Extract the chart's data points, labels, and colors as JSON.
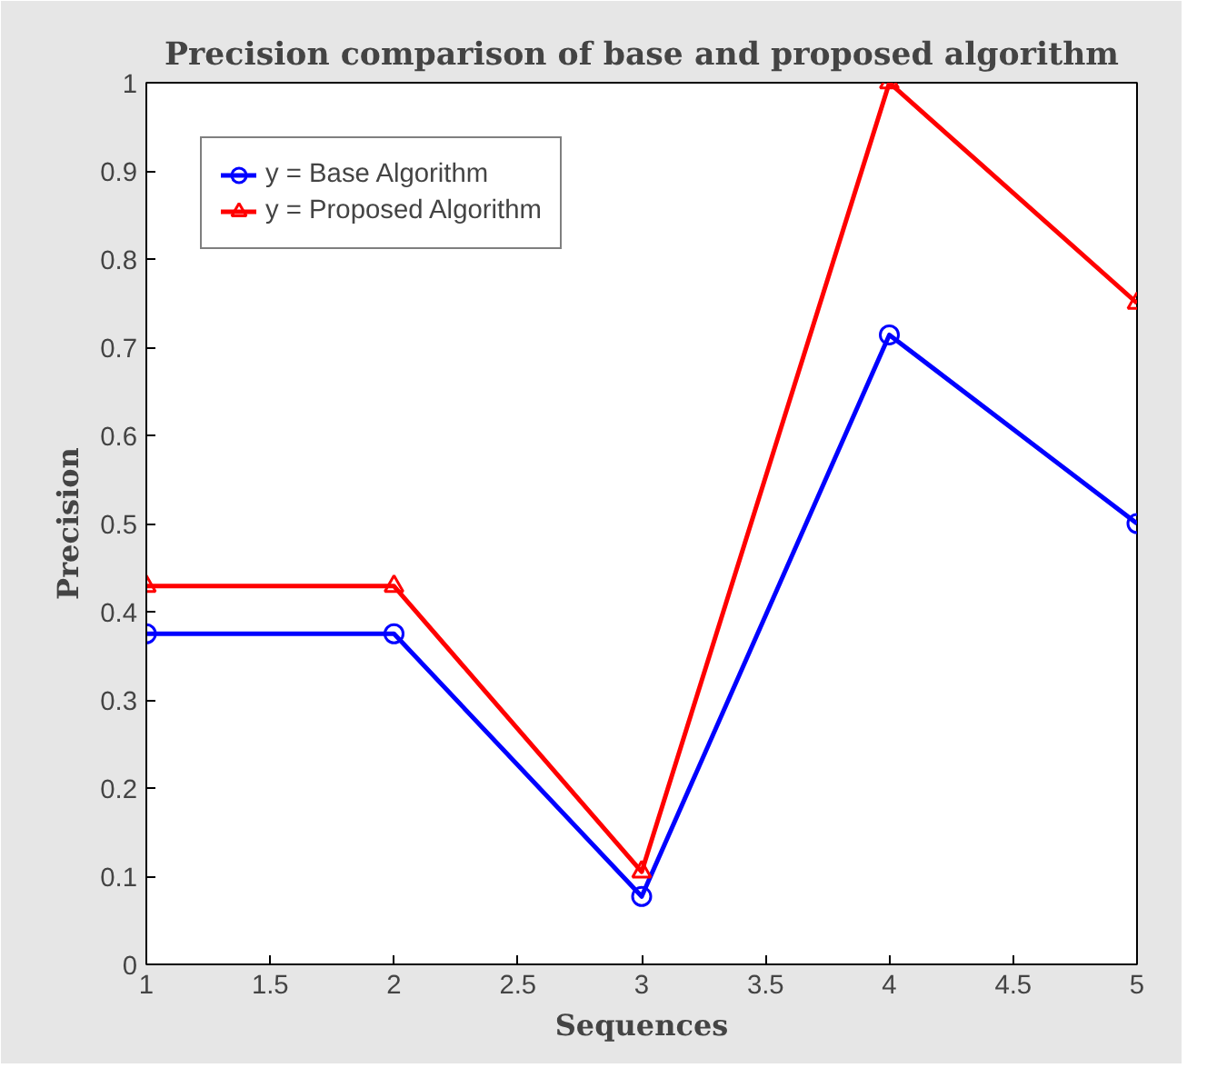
{
  "chart_data": {
    "type": "line",
    "title": "Precision comparison of base and proposed algorithm",
    "xlabel": "Sequences",
    "ylabel": "Precision",
    "x": [
      1,
      2,
      3,
      4,
      5
    ],
    "series": [
      {
        "name": "y = Base Algorithm",
        "color": "#0000ff",
        "values": [
          0.375,
          0.375,
          0.077,
          0.714,
          0.5
        ],
        "marker": "circle"
      },
      {
        "name": "y = Proposed Algorithm",
        "color": "#ff0000",
        "values": [
          0.429,
          0.429,
          0.105,
          1.0,
          0.75
        ],
        "marker": "triangle"
      }
    ],
    "xlim": [
      1,
      5
    ],
    "ylim": [
      0,
      1
    ],
    "xticks": [
      1,
      1.5,
      2,
      2.5,
      3,
      3.5,
      4,
      4.5,
      5
    ],
    "yticks": [
      0,
      0.1,
      0.2,
      0.3,
      0.4,
      0.5,
      0.6,
      0.7,
      0.8,
      0.9,
      1
    ],
    "grid": false,
    "legend": "top left",
    "line_style": "solid"
  }
}
